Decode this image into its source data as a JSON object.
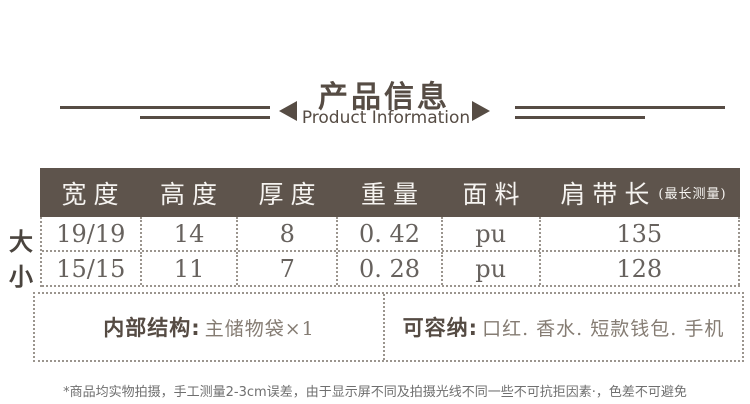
{
  "title": {
    "zh": "产品信息",
    "en": "Product Information"
  },
  "table": {
    "columns": [
      {
        "label": "宽度",
        "sub": ""
      },
      {
        "label": "高度",
        "sub": ""
      },
      {
        "label": "厚度",
        "sub": ""
      },
      {
        "label": "重量",
        "sub": ""
      },
      {
        "label": "面料",
        "sub": ""
      },
      {
        "label": "肩带长",
        "sub": "(最长测量)"
      }
    ],
    "rows": [
      {
        "label": "大",
        "cells": [
          "19/19",
          "14",
          "8",
          "0. 42",
          "pu",
          "135"
        ]
      },
      {
        "label": "小",
        "cells": [
          "15/15",
          "11",
          "7",
          "0. 28",
          "pu",
          "128"
        ]
      }
    ]
  },
  "info_boxes": [
    {
      "label": "内部结构:",
      "value": "主储物袋×1"
    },
    {
      "label": "可容纳:",
      "value": "口红. 香水. 短款钱包. 手机"
    }
  ],
  "footnote": "*商品均实物拍摄，手工测量2-3cm误差，由于显示屏不同及拍摄光线不同一些不可抗拒因素·，色差不可避免",
  "colors": {
    "accent": "#564c44",
    "header_bg": "#5e544c",
    "header_text": "#f6f4f1",
    "cell_text": "#67625e",
    "row_label": "#4a443e",
    "dotted": "#9b958e",
    "box_label": "#554b43",
    "box_value": "#857c73",
    "footnote_text": "#6f6f6f",
    "page_bg": "#ffffff"
  }
}
